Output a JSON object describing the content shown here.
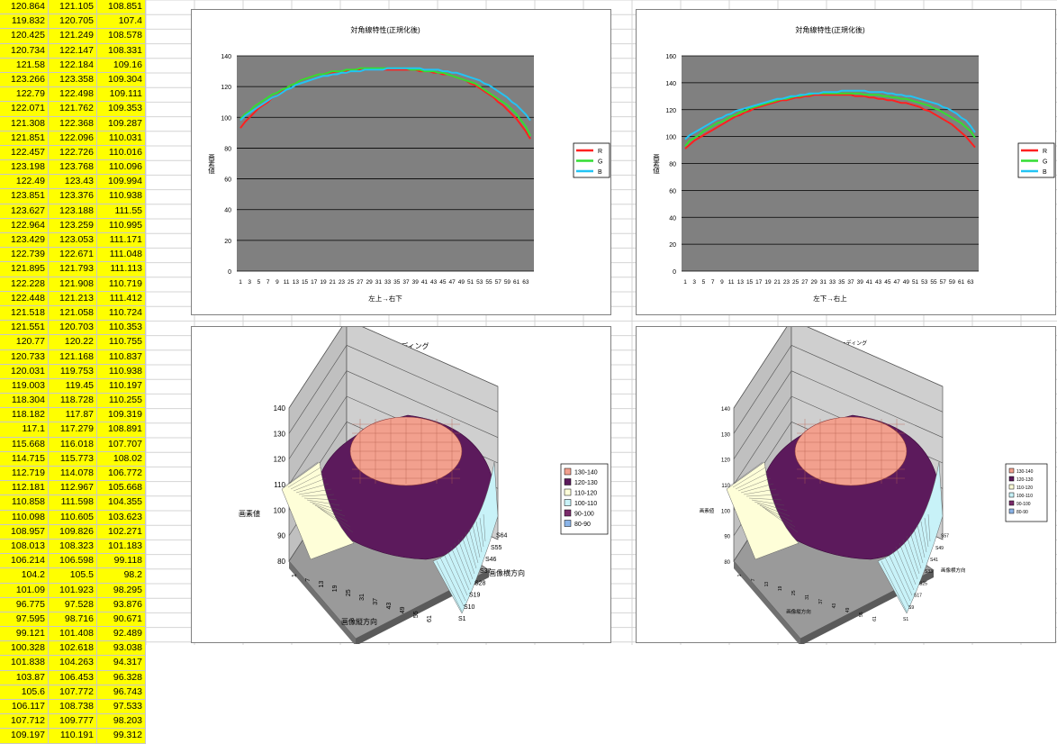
{
  "sheet_values": [
    [
      "120.864",
      "121.105",
      "108.851"
    ],
    [
      "119.832",
      "120.705",
      "107.4"
    ],
    [
      "120.425",
      "121.249",
      "108.578"
    ],
    [
      "120.734",
      "122.147",
      "108.331"
    ],
    [
      "121.58",
      "122.184",
      "109.16"
    ],
    [
      "123.266",
      "123.358",
      "109.304"
    ],
    [
      "122.79",
      "122.498",
      "109.111"
    ],
    [
      "122.071",
      "121.762",
      "109.353"
    ],
    [
      "121.308",
      "122.368",
      "109.287"
    ],
    [
      "121.851",
      "122.096",
      "110.031"
    ],
    [
      "122.457",
      "122.726",
      "110.016"
    ],
    [
      "123.198",
      "123.768",
      "110.096"
    ],
    [
      "122.49",
      "123.43",
      "109.994"
    ],
    [
      "123.851",
      "123.376",
      "110.938"
    ],
    [
      "123.627",
      "123.188",
      "111.55"
    ],
    [
      "122.964",
      "123.259",
      "110.995"
    ],
    [
      "123.429",
      "123.053",
      "111.171"
    ],
    [
      "122.739",
      "122.671",
      "111.048"
    ],
    [
      "121.895",
      "121.793",
      "111.113"
    ],
    [
      "122.228",
      "121.908",
      "110.719"
    ],
    [
      "122.448",
      "121.213",
      "111.412"
    ],
    [
      "121.518",
      "121.058",
      "110.724"
    ],
    [
      "121.551",
      "120.703",
      "110.353"
    ],
    [
      "120.77",
      "120.22",
      "110.755"
    ],
    [
      "120.733",
      "121.168",
      "110.837"
    ],
    [
      "120.031",
      "119.753",
      "110.938"
    ],
    [
      "119.003",
      "119.45",
      "110.197"
    ],
    [
      "118.304",
      "118.728",
      "110.255"
    ],
    [
      "118.182",
      "117.87",
      "109.319"
    ],
    [
      "117.1",
      "117.279",
      "108.891"
    ],
    [
      "115.668",
      "116.018",
      "107.707"
    ],
    [
      "114.715",
      "115.773",
      "108.02"
    ],
    [
      "112.719",
      "114.078",
      "106.772"
    ],
    [
      "112.181",
      "112.967",
      "105.668"
    ],
    [
      "110.858",
      "111.598",
      "104.355"
    ],
    [
      "110.098",
      "110.605",
      "103.623"
    ],
    [
      "108.957",
      "109.826",
      "102.271"
    ],
    [
      "108.013",
      "108.323",
      "101.183"
    ],
    [
      "106.214",
      "106.598",
      "99.118"
    ],
    [
      "104.2",
      "105.5",
      "98.2"
    ],
    [
      "101.09",
      "101.923",
      "98.295"
    ],
    [
      "96.775",
      "97.528",
      "93.876"
    ],
    [
      "97.595",
      "98.716",
      "90.671"
    ],
    [
      "99.121",
      "101.408",
      "92.489"
    ],
    [
      "100.328",
      "102.618",
      "93.038"
    ],
    [
      "101.838",
      "104.263",
      "94.317"
    ],
    [
      "103.87",
      "106.453",
      "96.328"
    ],
    [
      "105.6",
      "107.772",
      "96.743"
    ],
    [
      "106.117",
      "108.738",
      "97.533"
    ],
    [
      "107.712",
      "109.777",
      "98.203"
    ],
    [
      "109.197",
      "110.191",
      "99.312"
    ]
  ],
  "colors": {
    "plot_bg": "#808080",
    "R": "#ff2020",
    "G": "#33dd33",
    "B": "#22c4f4"
  },
  "chart_data": [
    {
      "type": "line",
      "title": "対角線特性(正規化後)",
      "xlabel": "左上→右下",
      "ylabel": "画素値",
      "ylim": [
        0,
        140
      ],
      "yticks": [
        0,
        20,
        40,
        60,
        80,
        100,
        120,
        140
      ],
      "xticks": [
        "1",
        "3",
        "5",
        "7",
        "9",
        "11",
        "13",
        "15",
        "17",
        "19",
        "21",
        "23",
        "25",
        "27",
        "29",
        "31",
        "33",
        "35",
        "37",
        "39",
        "41",
        "43",
        "45",
        "47",
        "49",
        "51",
        "53",
        "55",
        "57",
        "59",
        "61",
        "63"
      ],
      "legend_position": "right",
      "series": [
        {
          "name": "R",
          "values": [
            93,
            97,
            100,
            103,
            106,
            108,
            110,
            113,
            114,
            117,
            119,
            121,
            122,
            124,
            125,
            126,
            127,
            128,
            128,
            129,
            129,
            130,
            130,
            130,
            131,
            131,
            131,
            131,
            131,
            131,
            131,
            131,
            131,
            131,
            131,
            131,
            131,
            131,
            131,
            130,
            130,
            130,
            129,
            129,
            128,
            128,
            127,
            126,
            125,
            124,
            122,
            121,
            119,
            117,
            115,
            113,
            110,
            108,
            105,
            102,
            99,
            95,
            91,
            86
          ]
        },
        {
          "name": "G",
          "values": [
            99,
            102,
            104,
            107,
            109,
            111,
            113,
            115,
            116,
            118,
            119,
            121,
            122,
            124,
            125,
            126,
            127,
            128,
            128,
            129,
            130,
            130,
            130,
            131,
            131,
            131,
            132,
            132,
            132,
            132,
            132,
            132,
            132,
            132,
            132,
            132,
            132,
            131,
            131,
            131,
            130,
            130,
            130,
            129,
            129,
            128,
            127,
            126,
            125,
            124,
            123,
            122,
            120,
            118,
            116,
            114,
            112,
            110,
            108,
            105,
            102,
            98,
            94,
            88
          ]
        },
        {
          "name": "B",
          "values": [
            98,
            101,
            103,
            105,
            107,
            109,
            111,
            113,
            114,
            116,
            118,
            119,
            121,
            122,
            123,
            124,
            125,
            126,
            127,
            127,
            128,
            128,
            129,
            129,
            130,
            130,
            130,
            131,
            131,
            131,
            131,
            131,
            132,
            132,
            132,
            132,
            132,
            132,
            132,
            132,
            131,
            131,
            131,
            131,
            130,
            130,
            129,
            129,
            128,
            127,
            126,
            125,
            124,
            122,
            121,
            119,
            117,
            115,
            113,
            110,
            108,
            105,
            102,
            98
          ]
        }
      ]
    },
    {
      "type": "line",
      "title": "対角線特性(正規化後)",
      "xlabel": "左下→右上",
      "ylabel": "画素値",
      "ylim": [
        0,
        160
      ],
      "yticks": [
        0,
        20,
        40,
        60,
        80,
        100,
        120,
        140,
        160
      ],
      "xticks": [
        "1",
        "3",
        "5",
        "7",
        "9",
        "11",
        "13",
        "15",
        "17",
        "19",
        "21",
        "23",
        "25",
        "27",
        "29",
        "31",
        "33",
        "35",
        "37",
        "39",
        "41",
        "43",
        "45",
        "47",
        "49",
        "51",
        "53",
        "55",
        "57",
        "59",
        "61",
        "63"
      ],
      "legend_position": "right",
      "series": [
        {
          "name": "R",
          "values": [
            91,
            94,
            97,
            99,
            101,
            103,
            105,
            107,
            109,
            111,
            113,
            115,
            116,
            118,
            119,
            121,
            122,
            123,
            124,
            125,
            126,
            127,
            127,
            128,
            129,
            129,
            130,
            130,
            131,
            131,
            131,
            131,
            131,
            131,
            131,
            131,
            131,
            130,
            130,
            130,
            129,
            129,
            128,
            128,
            127,
            127,
            126,
            125,
            125,
            124,
            123,
            122,
            120,
            119,
            117,
            115,
            113,
            111,
            109,
            106,
            103,
            100,
            96,
            92
          ]
        },
        {
          "name": "G",
          "values": [
            93,
            97,
            99,
            101,
            104,
            106,
            108,
            110,
            111,
            113,
            115,
            116,
            118,
            119,
            121,
            122,
            123,
            124,
            125,
            126,
            127,
            128,
            128,
            129,
            130,
            130,
            131,
            131,
            132,
            132,
            132,
            132,
            132,
            132,
            132,
            132,
            132,
            132,
            132,
            131,
            131,
            131,
            131,
            130,
            130,
            129,
            129,
            128,
            128,
            127,
            126,
            125,
            124,
            123,
            121,
            120,
            118,
            116,
            114,
            112,
            110,
            107,
            104,
            99
          ]
        },
        {
          "name": "B",
          "values": [
            98,
            101,
            103,
            105,
            107,
            109,
            111,
            113,
            114,
            116,
            117,
            119,
            120,
            121,
            122,
            123,
            124,
            125,
            126,
            127,
            128,
            128,
            129,
            130,
            130,
            131,
            131,
            132,
            132,
            132,
            133,
            133,
            133,
            133,
            134,
            134,
            134,
            134,
            134,
            134,
            133,
            133,
            133,
            133,
            132,
            132,
            131,
            131,
            130,
            130,
            129,
            128,
            127,
            126,
            125,
            124,
            122,
            121,
            119,
            117,
            114,
            112,
            108,
            103
          ]
        }
      ]
    },
    {
      "type": "surface",
      "title": "Rシェーディング",
      "zlabel": "画素値",
      "xlabel": "画像縦方向",
      "ylabel": "画像横方向",
      "zlim": [
        80,
        140
      ],
      "zticks": [
        "80",
        "90",
        "100",
        "110",
        "120",
        "130",
        "140"
      ],
      "xticks": [
        "1",
        "7",
        "13",
        "19",
        "25",
        "31",
        "37",
        "43",
        "49",
        "55",
        "61"
      ],
      "yticks": [
        "S1",
        "S10",
        "S19",
        "S28",
        "S37",
        "S46",
        "S55",
        "S64"
      ],
      "legend": [
        "130-140",
        "120-130",
        "110-120",
        "100-110",
        "90-100",
        "80-90"
      ],
      "legend_colors": [
        "#f2a08e",
        "#5c1a5c",
        "#fefed8",
        "#c8f2f8",
        "#7a2a6a",
        "#8ab4e8"
      ],
      "legend_position": "right"
    },
    {
      "type": "surface",
      "title": "Gシェーディング",
      "zlabel": "画素値",
      "xlabel": "画像縦方向",
      "ylabel": "画像横方向",
      "zlim": [
        80,
        140
      ],
      "zticks": [
        "80",
        "90",
        "100",
        "110",
        "120",
        "130",
        "140"
      ],
      "xticks": [
        "1",
        "7",
        "13",
        "19",
        "25",
        "31",
        "37",
        "43",
        "49",
        "55",
        "61"
      ],
      "yticks": [
        "S1",
        "S9",
        "S17",
        "S25",
        "S33",
        "S41",
        "S49",
        "S57"
      ],
      "legend": [
        "130-140",
        "120-130",
        "110-120",
        "100-110",
        "90-100",
        "80-90"
      ],
      "legend_colors": [
        "#f2a08e",
        "#5c1a5c",
        "#fefed8",
        "#c8f2f8",
        "#7a2a6a",
        "#8ab4e8"
      ],
      "legend_position": "right"
    }
  ]
}
